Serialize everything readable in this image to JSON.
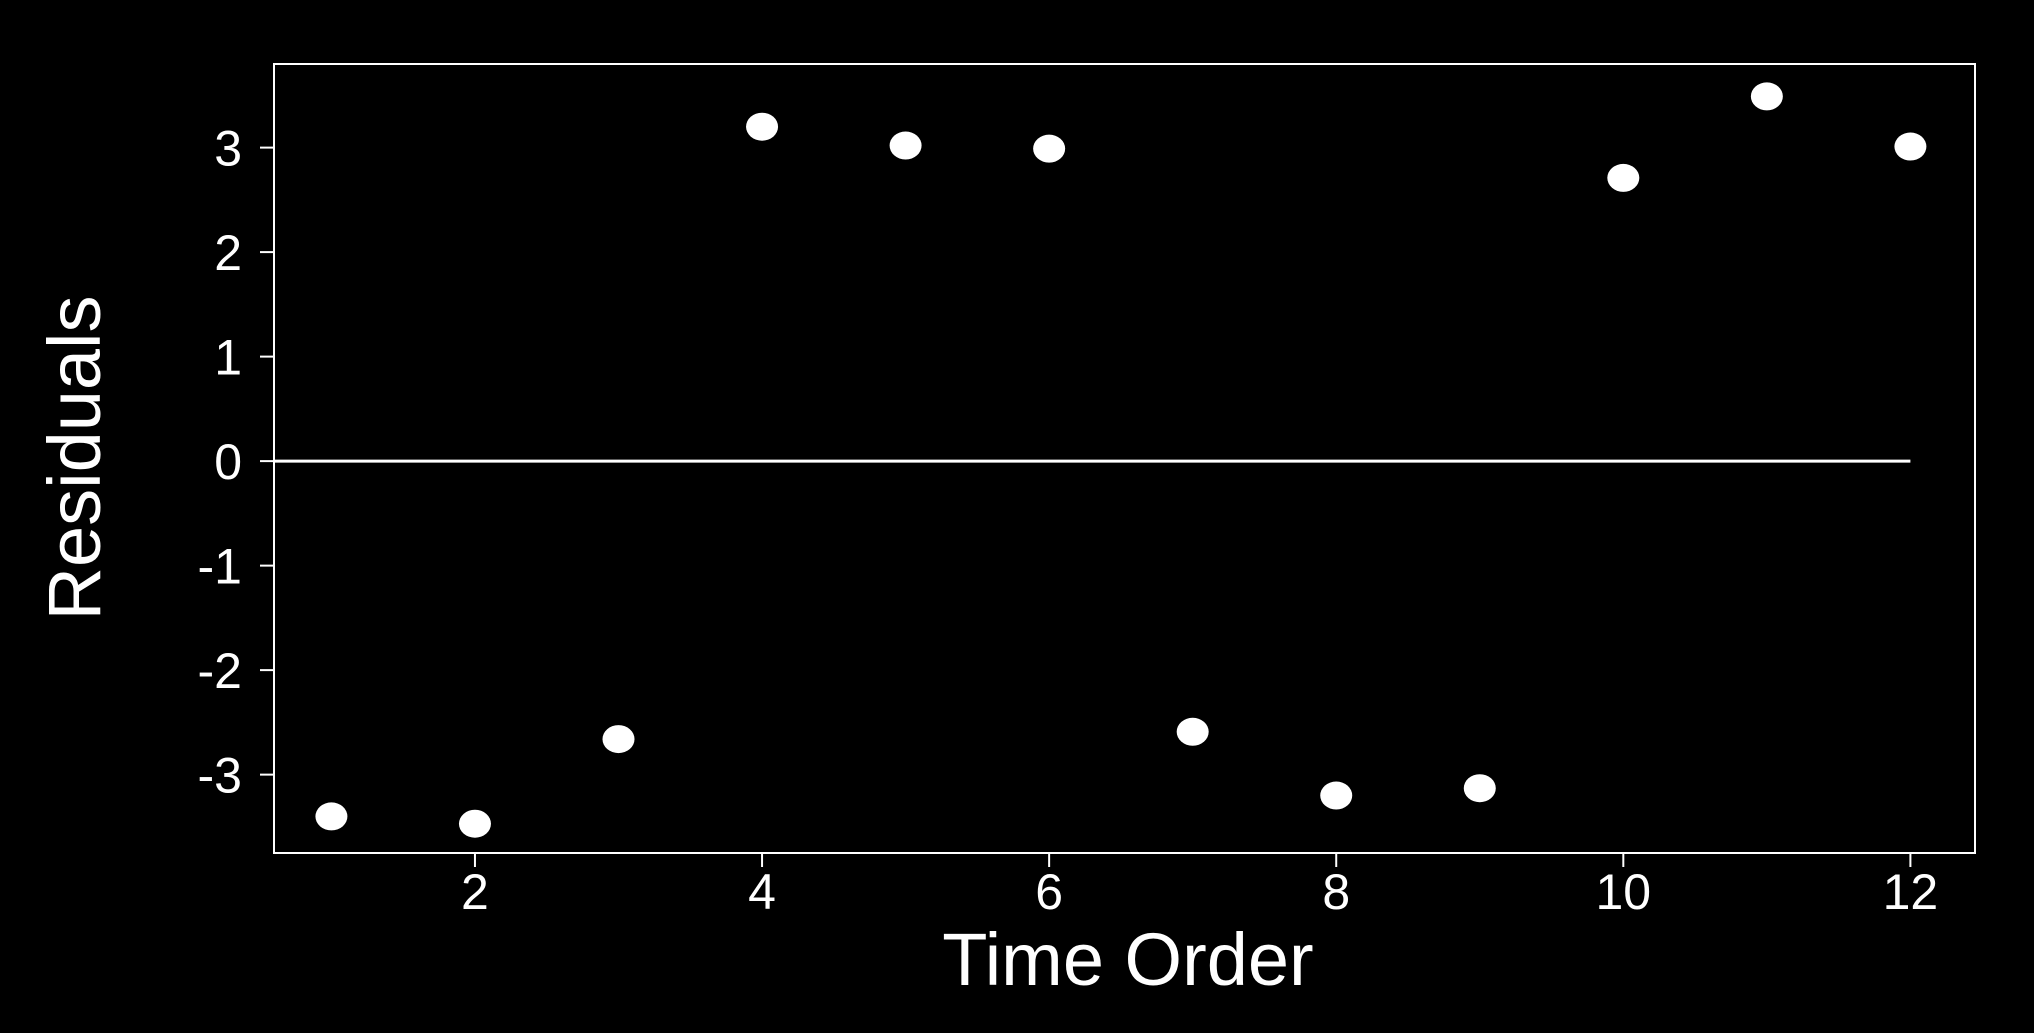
{
  "colors": {
    "background": "#000000",
    "foreground": "#ffffff"
  },
  "chart_data": {
    "type": "scatter",
    "title": "",
    "xlabel": "Time Order",
    "ylabel": "Residuals",
    "xlim": [
      0.6,
      12.45
    ],
    "ylim": [
      -3.75,
      3.8
    ],
    "x_ticks": [
      2,
      4,
      6,
      8,
      10,
      12
    ],
    "y_ticks": [
      -3,
      -2,
      -1,
      0,
      1,
      2,
      3
    ],
    "x_tick_labels": [
      "2",
      "4",
      "6",
      "8",
      "10",
      "12"
    ],
    "y_tick_labels": [
      "-3",
      "-2",
      "-1",
      "0",
      "1",
      "2",
      "3"
    ],
    "reference_line": {
      "y": 0,
      "x_from": 0.6,
      "x_to": 12
    },
    "grid": false,
    "legend": "none",
    "series": [
      {
        "x": [
          1,
          2,
          3,
          4,
          5,
          6,
          7,
          8,
          9,
          10,
          11,
          12
        ],
        "y": [
          -3.4,
          -3.47,
          -2.66,
          3.2,
          3.02,
          2.99,
          -2.59,
          -3.2,
          -3.13,
          2.71,
          3.49,
          3.01
        ]
      }
    ]
  }
}
